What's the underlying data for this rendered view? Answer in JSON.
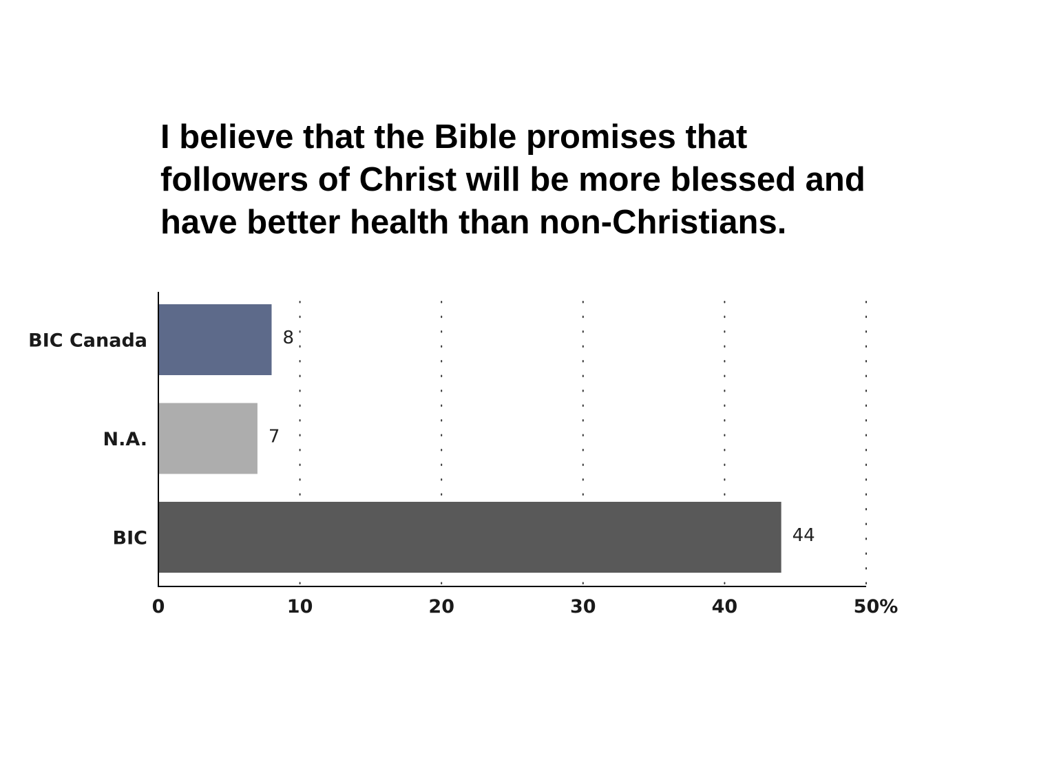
{
  "chart_data": {
    "type": "bar",
    "orientation": "horizontal",
    "title_lines": [
      "I believe that the Bible promises that",
      "followers of Christ will be more blessed and",
      "have better health than non-Christians."
    ],
    "categories": [
      "BIC Canada",
      "N.A.",
      "BIC"
    ],
    "values": [
      8,
      7,
      44
    ],
    "value_labels": [
      "8",
      "7",
      "44"
    ],
    "colors": [
      "#5d6a8a",
      "#adadad",
      "#595959"
    ],
    "xlim": [
      0,
      50
    ],
    "ticks": [
      0,
      10,
      20,
      30,
      40,
      50
    ],
    "tick_labels": [
      "0",
      "10",
      "20",
      "30",
      "40",
      "50%"
    ],
    "grid": "vertical dotted",
    "xlabel": "",
    "ylabel": ""
  }
}
